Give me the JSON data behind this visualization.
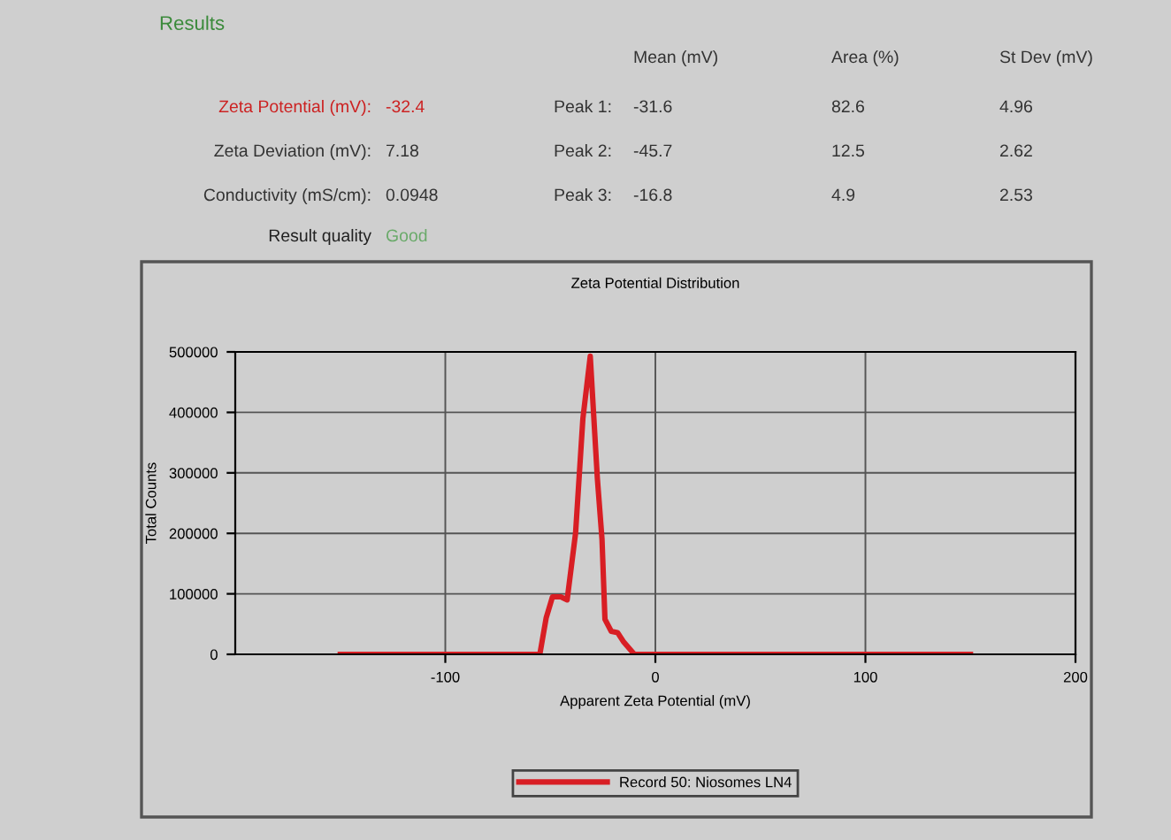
{
  "chart_data": {
    "type": "line",
    "title": "Zeta Potential Distribution",
    "xlabel": "Apparent Zeta Potential (mV)",
    "ylabel": "Total Counts",
    "series": [
      {
        "name": "Record 50: Niosomes LN4",
        "color": "#d81e24",
        "x": [
          -150,
          -55,
          -52,
          -49,
          -45,
          -42,
          -38,
          -34.5,
          -31,
          -27.6,
          -25.4,
          -24,
          -21,
          -18,
          -15,
          -10,
          150
        ],
        "values": [
          0,
          0,
          60000,
          95000,
          95000,
          90000,
          200000,
          390000,
          493000,
          290000,
          190000,
          58000,
          38000,
          36000,
          20000,
          0,
          0
        ]
      }
    ],
    "xlim": [
      -200,
      200
    ],
    "xticks": [
      -100,
      0,
      100,
      200
    ],
    "ylim": [
      0,
      500000
    ],
    "yticks": [
      0,
      100000,
      200000,
      300000,
      400000,
      500000
    ],
    "grid": true,
    "legend": "bottom",
    "marker": "none",
    "line_style": "solid",
    "annotations": [
      "Results",
      "Mean (mV)",
      "Area (%)",
      "St Dev (mV)",
      "Zeta Potential (mV):",
      "-32.4",
      "Peak 1:",
      "-31.6",
      "82.6",
      "4.96",
      "Zeta Deviation (mV):",
      "7.18",
      "Peak 2:",
      "-45.7",
      "12.5",
      "2.62",
      "Conductivity (mS/cm):",
      "0.0948",
      "Peak 3:",
      "-16.8",
      "4.9",
      "2.53",
      "Result quality",
      "Good"
    ]
  }
}
